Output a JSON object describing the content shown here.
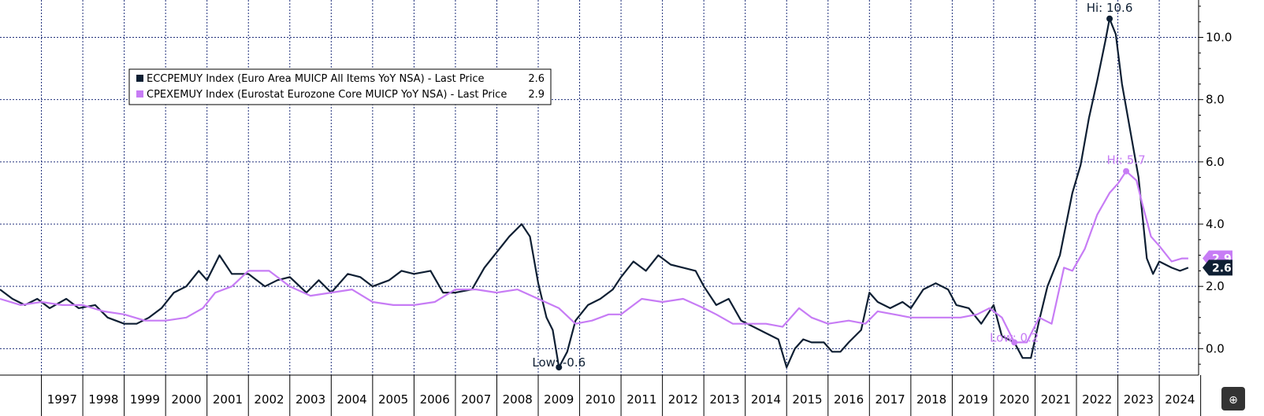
{
  "colors": {
    "series1": "#0e1f33",
    "series2": "#c77cf5",
    "grid": "#1f2f7a",
    "axis": "#000000",
    "background": "#ffffff"
  },
  "chart_data": {
    "type": "line",
    "x_range": [
      1996.0,
      2024.95
    ],
    "ylim": [
      -0.85,
      11.2
    ],
    "y_ticks": [
      "0.0",
      "2.0",
      "4.0",
      "6.0",
      "8.0",
      "10.0"
    ],
    "y_tick_values": [
      0,
      2,
      4,
      6,
      8,
      10
    ],
    "x_ticks": [
      "1997",
      "1998",
      "1999",
      "2000",
      "2001",
      "2002",
      "2003",
      "2004",
      "2005",
      "2006",
      "2007",
      "2008",
      "2009",
      "2010",
      "2011",
      "2012",
      "2013",
      "2014",
      "2015",
      "2016",
      "2017",
      "2018",
      "2019",
      "2020",
      "2021",
      "2022",
      "2023",
      "2024"
    ],
    "grid": true,
    "y_axis_side": "right",
    "legend_position": "upper-left",
    "series": [
      {
        "name": "ECCPEMUY Index (Euro Area MUICP All Items YoY NSA) - Last Price",
        "last_value": "2.6",
        "points": [
          [
            1996.0,
            1.9
          ],
          [
            1996.3,
            1.6
          ],
          [
            1996.6,
            1.4
          ],
          [
            1996.9,
            1.6
          ],
          [
            1997.2,
            1.3
          ],
          [
            1997.6,
            1.6
          ],
          [
            1997.9,
            1.3
          ],
          [
            1998.3,
            1.4
          ],
          [
            1998.6,
            1.0
          ],
          [
            1999.0,
            0.8
          ],
          [
            1999.3,
            0.8
          ],
          [
            1999.6,
            1.0
          ],
          [
            1999.9,
            1.3
          ],
          [
            2000.2,
            1.8
          ],
          [
            2000.5,
            2.0
          ],
          [
            2000.8,
            2.5
          ],
          [
            2001.0,
            2.2
          ],
          [
            2001.3,
            3.0
          ],
          [
            2001.6,
            2.4
          ],
          [
            2002.0,
            2.4
          ],
          [
            2002.4,
            2.0
          ],
          [
            2002.7,
            2.2
          ],
          [
            2003.0,
            2.3
          ],
          [
            2003.4,
            1.8
          ],
          [
            2003.7,
            2.2
          ],
          [
            2004.0,
            1.8
          ],
          [
            2004.4,
            2.4
          ],
          [
            2004.7,
            2.3
          ],
          [
            2005.0,
            2.0
          ],
          [
            2005.4,
            2.2
          ],
          [
            2005.7,
            2.5
          ],
          [
            2006.0,
            2.4
          ],
          [
            2006.4,
            2.5
          ],
          [
            2006.7,
            1.8
          ],
          [
            2007.0,
            1.8
          ],
          [
            2007.4,
            1.9
          ],
          [
            2007.7,
            2.6
          ],
          [
            2008.0,
            3.1
          ],
          [
            2008.3,
            3.6
          ],
          [
            2008.6,
            4.0
          ],
          [
            2008.8,
            3.6
          ],
          [
            2009.0,
            2.1
          ],
          [
            2009.2,
            1.0
          ],
          [
            2009.35,
            0.6
          ],
          [
            2009.5,
            -0.6
          ],
          [
            2009.7,
            -0.1
          ],
          [
            2009.9,
            0.9
          ],
          [
            2010.2,
            1.4
          ],
          [
            2010.5,
            1.6
          ],
          [
            2010.8,
            1.9
          ],
          [
            2011.0,
            2.3
          ],
          [
            2011.3,
            2.8
          ],
          [
            2011.6,
            2.5
          ],
          [
            2011.9,
            3.0
          ],
          [
            2012.2,
            2.7
          ],
          [
            2012.5,
            2.6
          ],
          [
            2012.8,
            2.5
          ],
          [
            2013.0,
            2.0
          ],
          [
            2013.3,
            1.4
          ],
          [
            2013.6,
            1.6
          ],
          [
            2013.9,
            0.9
          ],
          [
            2014.2,
            0.7
          ],
          [
            2014.5,
            0.5
          ],
          [
            2014.8,
            0.3
          ],
          [
            2015.0,
            -0.6
          ],
          [
            2015.2,
            0.0
          ],
          [
            2015.4,
            0.3
          ],
          [
            2015.6,
            0.2
          ],
          [
            2015.9,
            0.2
          ],
          [
            2016.1,
            -0.1
          ],
          [
            2016.3,
            -0.1
          ],
          [
            2016.5,
            0.2
          ],
          [
            2016.8,
            0.6
          ],
          [
            2017.0,
            1.8
          ],
          [
            2017.2,
            1.5
          ],
          [
            2017.5,
            1.3
          ],
          [
            2017.8,
            1.5
          ],
          [
            2018.0,
            1.3
          ],
          [
            2018.3,
            1.9
          ],
          [
            2018.6,
            2.1
          ],
          [
            2018.9,
            1.9
          ],
          [
            2019.1,
            1.4
          ],
          [
            2019.4,
            1.3
          ],
          [
            2019.7,
            0.8
          ],
          [
            2020.0,
            1.4
          ],
          [
            2020.2,
            0.4
          ],
          [
            2020.5,
            0.2
          ],
          [
            2020.7,
            -0.3
          ],
          [
            2020.9,
            -0.3
          ],
          [
            2021.1,
            0.9
          ],
          [
            2021.3,
            2.0
          ],
          [
            2021.6,
            3.0
          ],
          [
            2021.9,
            5.0
          ],
          [
            2022.1,
            5.9
          ],
          [
            2022.3,
            7.4
          ],
          [
            2022.5,
            8.6
          ],
          [
            2022.7,
            9.9
          ],
          [
            2022.8,
            10.6
          ],
          [
            2022.95,
            10.1
          ],
          [
            2023.1,
            8.5
          ],
          [
            2023.3,
            7.0
          ],
          [
            2023.5,
            5.5
          ],
          [
            2023.7,
            2.9
          ],
          [
            2023.85,
            2.4
          ],
          [
            2024.0,
            2.8
          ],
          [
            2024.3,
            2.6
          ],
          [
            2024.5,
            2.5
          ],
          [
            2024.7,
            2.6
          ]
        ]
      },
      {
        "name": "CPEXEMUY Index (Eurostat Eurozone Core MUICP YoY NSA) - Last Price",
        "last_value": "2.9",
        "points": [
          [
            1996.0,
            1.6
          ],
          [
            1996.5,
            1.4
          ],
          [
            1997.0,
            1.5
          ],
          [
            1997.5,
            1.4
          ],
          [
            1998.0,
            1.4
          ],
          [
            1998.5,
            1.2
          ],
          [
            1999.0,
            1.1
          ],
          [
            1999.5,
            0.9
          ],
          [
            2000.0,
            0.9
          ],
          [
            2000.5,
            1.0
          ],
          [
            2000.9,
            1.3
          ],
          [
            2001.2,
            1.8
          ],
          [
            2001.6,
            2.0
          ],
          [
            2002.0,
            2.5
          ],
          [
            2002.5,
            2.5
          ],
          [
            2003.0,
            2.0
          ],
          [
            2003.5,
            1.7
          ],
          [
            2004.0,
            1.8
          ],
          [
            2004.5,
            1.9
          ],
          [
            2005.0,
            1.5
          ],
          [
            2005.5,
            1.4
          ],
          [
            2006.0,
            1.4
          ],
          [
            2006.5,
            1.5
          ],
          [
            2007.0,
            1.9
          ],
          [
            2007.5,
            1.9
          ],
          [
            2008.0,
            1.8
          ],
          [
            2008.5,
            1.9
          ],
          [
            2009.0,
            1.6
          ],
          [
            2009.5,
            1.3
          ],
          [
            2009.9,
            0.8
          ],
          [
            2010.3,
            0.9
          ],
          [
            2010.7,
            1.1
          ],
          [
            2011.0,
            1.1
          ],
          [
            2011.5,
            1.6
          ],
          [
            2012.0,
            1.5
          ],
          [
            2012.5,
            1.6
          ],
          [
            2013.0,
            1.3
          ],
          [
            2013.3,
            1.1
          ],
          [
            2013.7,
            0.8
          ],
          [
            2014.0,
            0.8
          ],
          [
            2014.5,
            0.8
          ],
          [
            2014.9,
            0.7
          ],
          [
            2015.3,
            1.3
          ],
          [
            2015.6,
            1.0
          ],
          [
            2016.0,
            0.8
          ],
          [
            2016.5,
            0.9
          ],
          [
            2016.9,
            0.8
          ],
          [
            2017.2,
            1.2
          ],
          [
            2017.6,
            1.1
          ],
          [
            2018.0,
            1.0
          ],
          [
            2018.5,
            1.0
          ],
          [
            2018.9,
            1.0
          ],
          [
            2019.2,
            1.0
          ],
          [
            2019.6,
            1.1
          ],
          [
            2019.9,
            1.3
          ],
          [
            2020.2,
            1.0
          ],
          [
            2020.5,
            0.2
          ],
          [
            2020.8,
            0.2
          ],
          [
            2021.1,
            1.0
          ],
          [
            2021.4,
            0.8
          ],
          [
            2021.7,
            2.6
          ],
          [
            2021.9,
            2.5
          ],
          [
            2022.2,
            3.2
          ],
          [
            2022.5,
            4.3
          ],
          [
            2022.8,
            5.0
          ],
          [
            2023.0,
            5.3
          ],
          [
            2023.2,
            5.7
          ],
          [
            2023.45,
            5.4
          ],
          [
            2023.6,
            4.6
          ],
          [
            2023.8,
            3.6
          ],
          [
            2024.0,
            3.3
          ],
          [
            2024.3,
            2.8
          ],
          [
            2024.55,
            2.9
          ],
          [
            2024.7,
            2.9
          ]
        ]
      }
    ],
    "annotations": [
      {
        "label": "Hi: 10.6",
        "series": 0,
        "x": 2022.8,
        "y": 10.6
      },
      {
        "label": "Low: -0.6",
        "series": 0,
        "x": 2009.5,
        "y": -0.6
      },
      {
        "label": "Hi: 5.7",
        "series": 1,
        "x": 2023.2,
        "y": 5.7
      },
      {
        "label": "Low: 0.2",
        "series": 1,
        "x": 2020.5,
        "y": 0.2
      }
    ]
  }
}
